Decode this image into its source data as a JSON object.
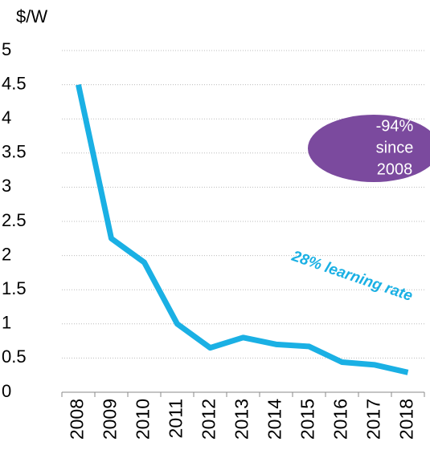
{
  "chart_data": {
    "type": "line",
    "y_axis_label": "$/W",
    "categories": [
      "2008",
      "2009",
      "2010",
      "2011",
      "2012",
      "2013",
      "2014",
      "2015",
      "2016",
      "2017",
      "2018"
    ],
    "values": [
      4.5,
      2.25,
      1.9,
      1.0,
      0.65,
      0.8,
      0.7,
      0.67,
      0.44,
      0.4,
      0.29
    ],
    "color": "#1ab0e4",
    "ylim": [
      0,
      5
    ],
    "yticks": [
      0,
      0.5,
      1,
      1.5,
      2,
      2.5,
      3,
      3.5,
      4,
      4.5,
      5
    ],
    "grid": true,
    "badge": {
      "lines": [
        "-94%",
        "since",
        "2008"
      ],
      "color": "#7b4a9e"
    },
    "annotation": "28% learning rate"
  }
}
